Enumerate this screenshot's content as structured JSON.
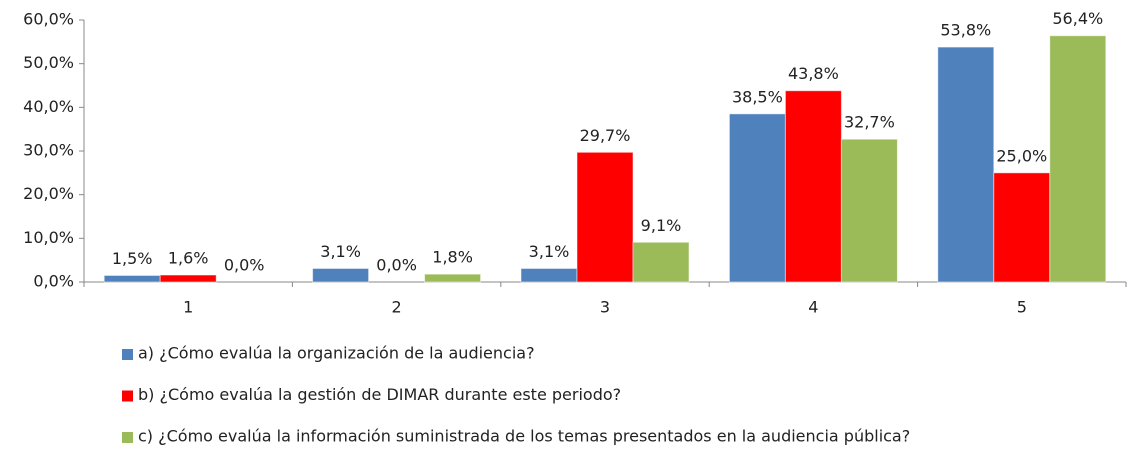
{
  "chart_data": {
    "type": "bar",
    "categories": [
      "1",
      "2",
      "3",
      "4",
      "5"
    ],
    "series": [
      {
        "name": "a) ¿Cómo evalúa la organización de la audiencia?",
        "color": "#4f81bd",
        "values": [
          1.5,
          3.1,
          3.1,
          38.5,
          53.8
        ],
        "value_labels": [
          "1,5%",
          "3,1%",
          "3,1%",
          "38,5%",
          "53,8%"
        ]
      },
      {
        "name": "b) ¿Cómo evalúa la gestión de DIMAR durante este periodo?",
        "color": "#ff0000",
        "values": [
          1.6,
          0.0,
          29.7,
          43.8,
          25.0
        ],
        "value_labels": [
          "1,6%",
          "0,0%",
          "29,7%",
          "43,8%",
          "25,0%"
        ]
      },
      {
        "name": "c) ¿Cómo evalúa la información suministrada de los temas presentados en la audiencia pública?",
        "color": "#9bbb59",
        "values": [
          0.0,
          1.8,
          9.1,
          32.7,
          56.4
        ],
        "value_labels": [
          "0,0%",
          "1,8%",
          "9,1%",
          "32,7%",
          "56,4%"
        ]
      }
    ],
    "ylim": [
      0,
      60
    ],
    "yticks": [
      {
        "value": 0,
        "label": "0,0%"
      },
      {
        "value": 10,
        "label": "10,0%"
      },
      {
        "value": 20,
        "label": "20,0%"
      },
      {
        "value": 30,
        "label": "30,0%"
      },
      {
        "value": 40,
        "label": "40,0%"
      },
      {
        "value": 50,
        "label": "50,0%"
      },
      {
        "value": 60,
        "label": "60,0%"
      }
    ],
    "grid": false,
    "legend": "bottom"
  }
}
